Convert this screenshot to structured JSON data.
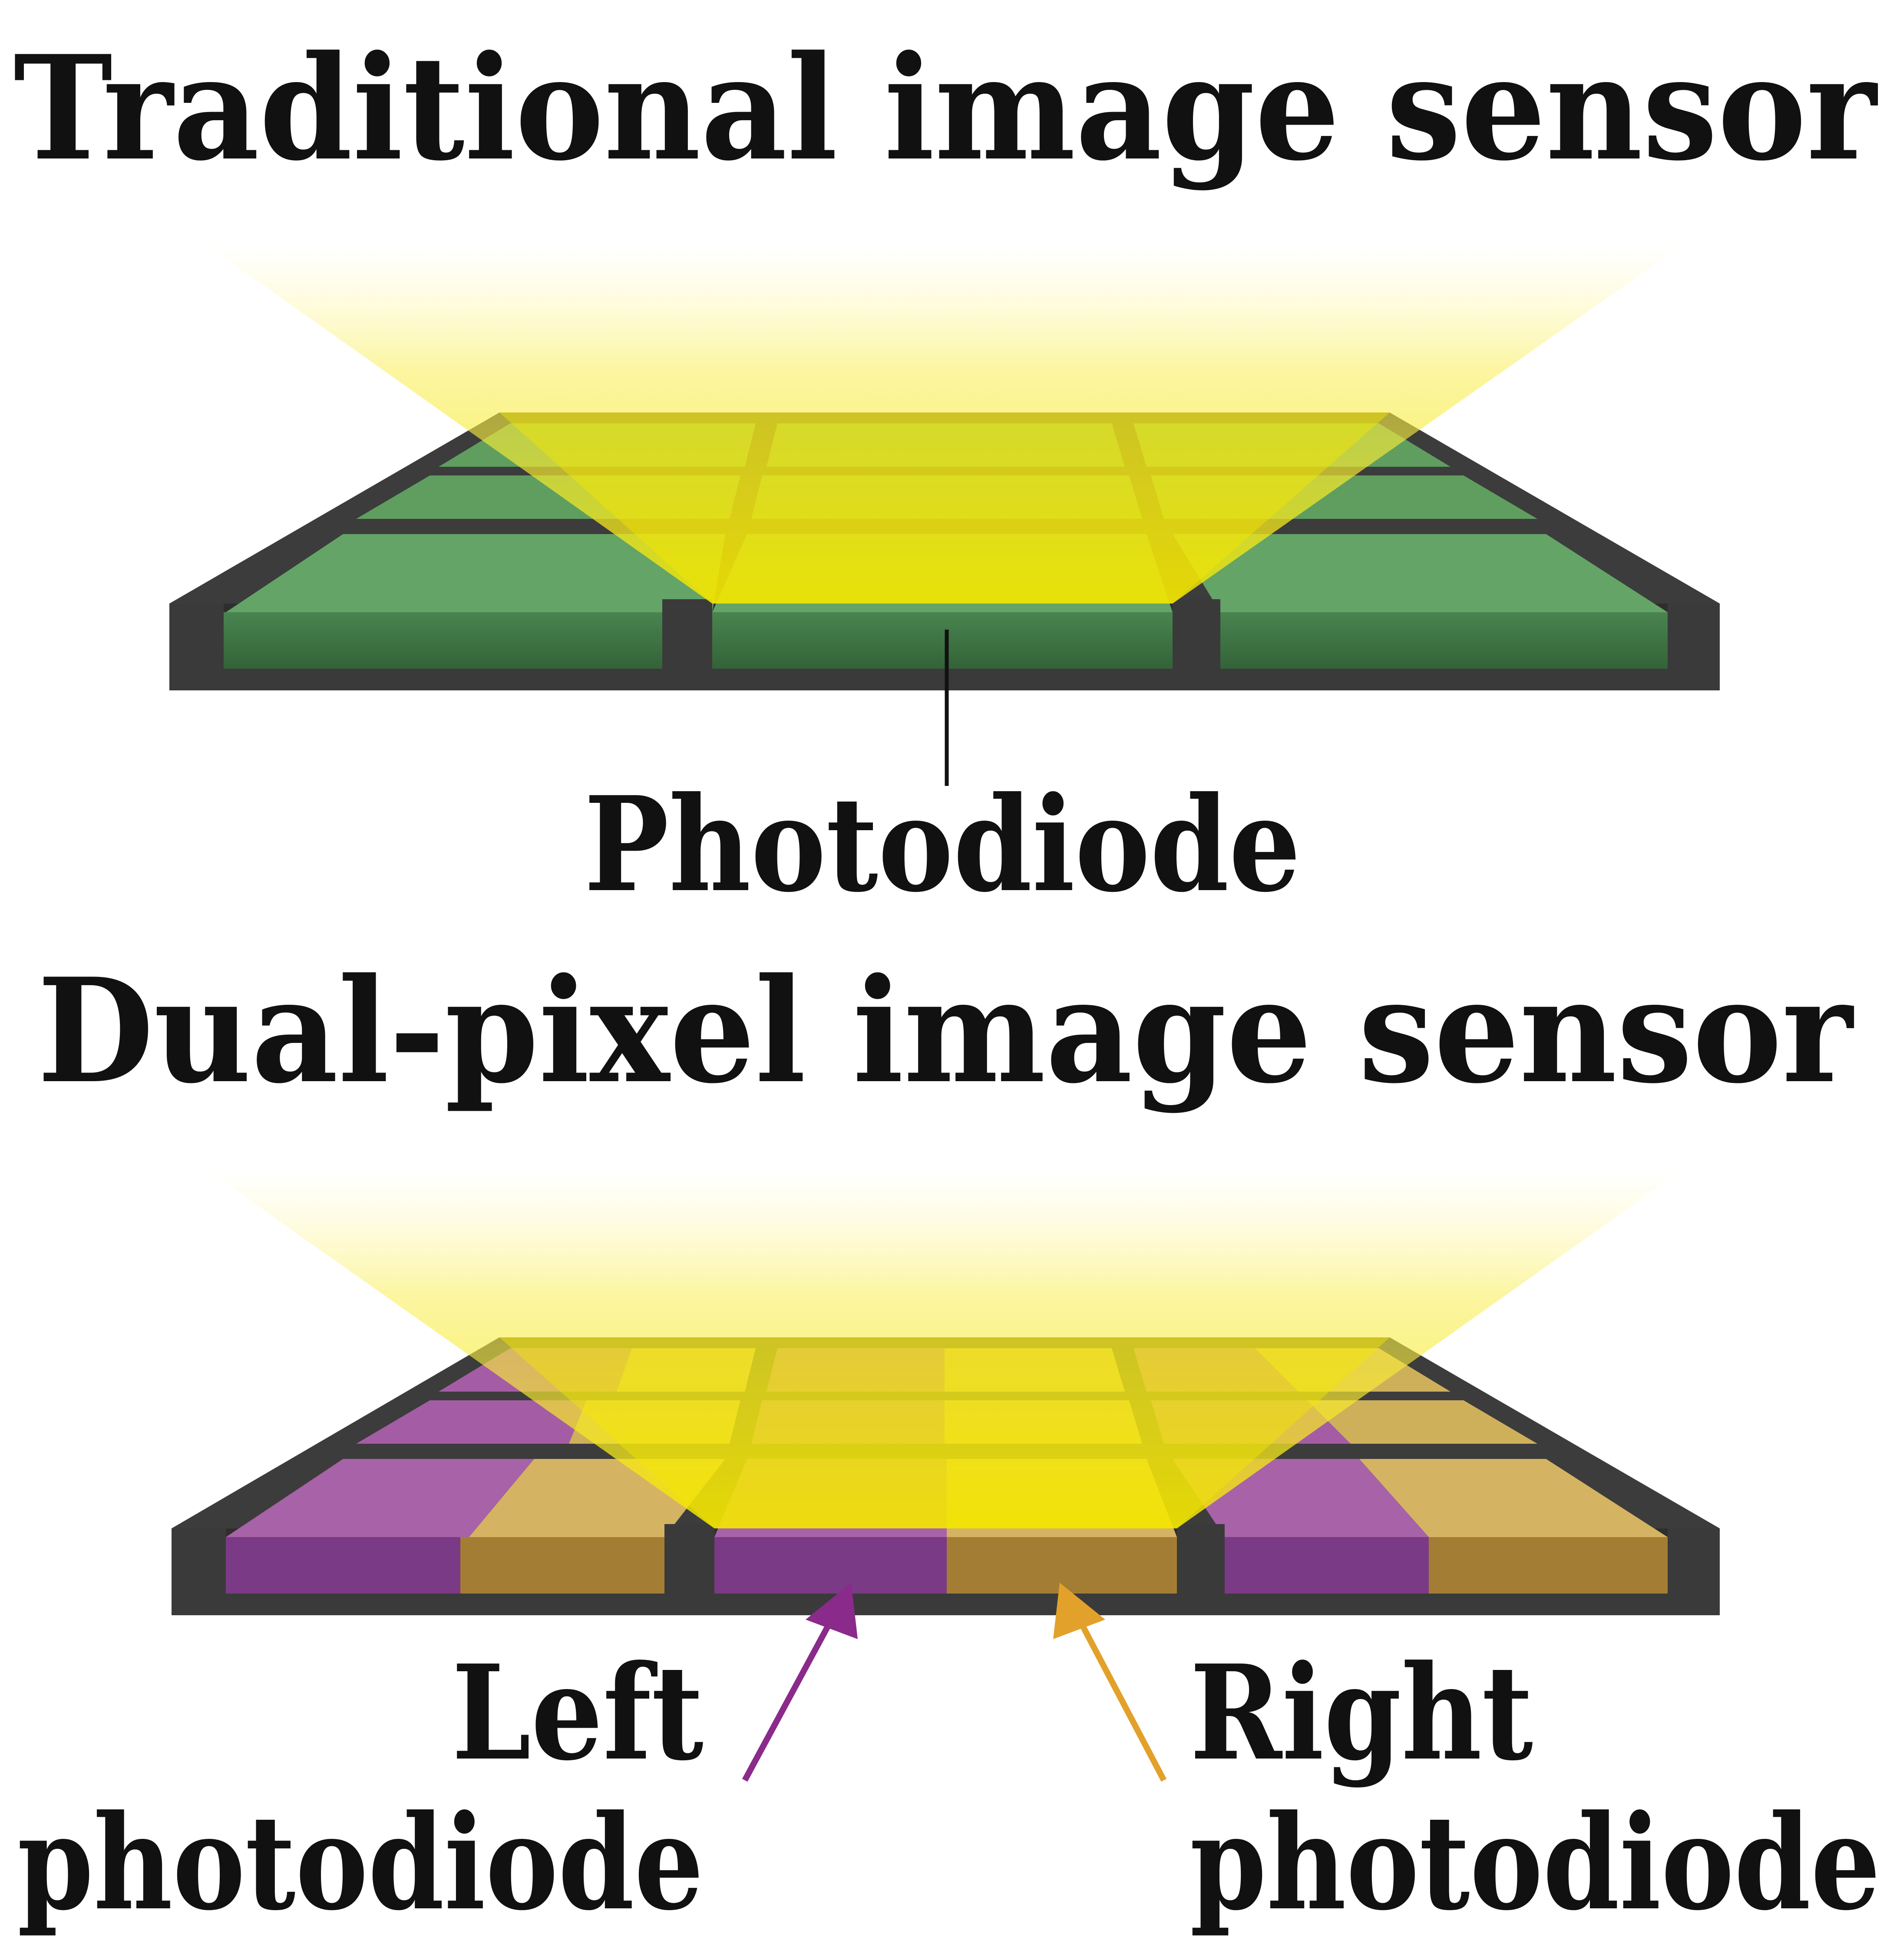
{
  "traditional": {
    "title": "Traditional image sensor",
    "photodiode_label": "Photodiode"
  },
  "dual_pixel": {
    "title": "Dual-pixel image sensor",
    "left_label_line1": "Left",
    "left_label_line2": "photodiode",
    "right_label_line1": "Right",
    "right_label_line2": "photodiode"
  },
  "colors": {
    "frame": "#3c3c3c",
    "frame_edge": "#2a2a2a",
    "green_top": "#5f9e5f",
    "green_front": "#3a6e3e",
    "magenta_top": "#a45da4",
    "magenta_front": "#7b3a86",
    "orange_top": "#cfb05a",
    "orange_front": "#a47d34",
    "light": "#f6ea1e",
    "left_arrow": "#8a2a8a",
    "right_arrow": "#e2a12a"
  },
  "icons": {
    "left_arrow": "arrow-up-right-icon",
    "right_arrow": "arrow-up-left-icon"
  }
}
